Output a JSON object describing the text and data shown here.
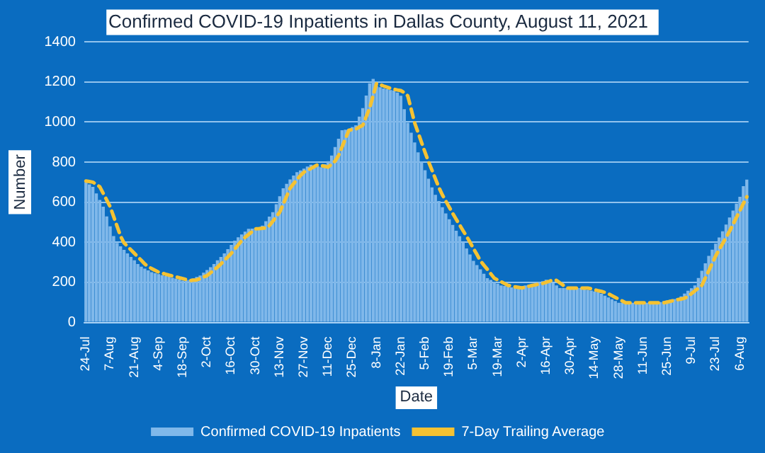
{
  "chart_data": {
    "type": "bar",
    "title": "Confirmed COVID-19 Inpatients in Dallas County, August 11, 2021",
    "xlabel": "Date",
    "ylabel": "Number",
    "categories": [
      "24-Jul",
      null,
      null,
      null,
      null,
      null,
      null,
      "7-Aug",
      null,
      null,
      null,
      null,
      null,
      null,
      "21-Aug",
      null,
      null,
      null,
      null,
      null,
      null,
      "4-Sep",
      null,
      null,
      null,
      null,
      null,
      null,
      "18-Sep",
      null,
      null,
      null,
      null,
      null,
      null,
      "2-Oct",
      null,
      null,
      null,
      null,
      null,
      null,
      "16-Oct",
      null,
      null,
      null,
      null,
      null,
      null,
      "30-Oct",
      null,
      null,
      null,
      null,
      null,
      null,
      "13-Nov",
      null,
      null,
      null,
      null,
      null,
      null,
      "27-Nov",
      null,
      null,
      null,
      null,
      null,
      null,
      "11-Dec",
      null,
      null,
      null,
      null,
      null,
      null,
      "25-Dec",
      null,
      null,
      null,
      null,
      null,
      null,
      "8-Jan",
      null,
      null,
      null,
      null,
      null,
      null,
      "22-Jan",
      null,
      null,
      null,
      null,
      null,
      null,
      "5-Feb",
      null,
      null,
      null,
      null,
      null,
      null,
      "19-Feb",
      null,
      null,
      null,
      null,
      null,
      null,
      "5-Mar",
      null,
      null,
      null,
      null,
      null,
      null,
      "19-Mar",
      null,
      null,
      null,
      null,
      null,
      null,
      "2-Apr",
      null,
      null,
      null,
      null,
      null,
      null,
      "16-Apr",
      null,
      null,
      null,
      null,
      null,
      null,
      "30-Apr",
      null,
      null,
      null,
      null,
      null,
      null,
      "14-May",
      null,
      null,
      null,
      null,
      null,
      null,
      "28-May",
      null,
      null,
      null,
      null,
      null,
      null,
      "11-Jun",
      null,
      null,
      null,
      null,
      null,
      null,
      "25-Jun",
      null,
      null,
      null,
      null,
      null,
      null,
      "9-Jul",
      null,
      null,
      null,
      null,
      null,
      null,
      "23-Jul",
      null,
      null,
      null,
      null,
      null,
      null,
      "6-Aug",
      null,
      null
    ],
    "series": [
      {
        "name": "Confirmed COVID-19 Inpatients",
        "type": "bar",
        "color": "#80b8ea",
        "values": [
          700,
          689,
          677,
          644,
          611,
          578,
          529,
          480,
          431,
          397,
          380,
          362,
          345,
          327,
          310,
          292,
          278,
          269,
          260,
          251,
          246,
          241,
          236,
          232,
          228,
          223,
          219,
          214,
          209,
          211,
          212,
          219,
          227,
          234,
          248,
          262,
          276,
          292,
          310,
          327,
          345,
          366,
          387,
          408,
          425,
          439,
          453,
          467,
          468,
          470,
          471,
          483,
          505,
          528,
          550,
          590,
          630,
          670,
          692,
          714,
          733,
          750,
          759,
          768,
          778,
          787,
          783,
          779,
          775,
          790,
          805,
          833,
          875,
          917,
          959,
          962,
          965,
          975,
          984,
          1027,
          1070,
          1132,
          1193,
          1215,
          1180,
          1174,
          1168,
          1164,
          1160,
          1157,
          1147,
          1131,
          1064,
          996,
          947,
          898,
          849,
          803,
          760,
          717,
          674,
          637,
          606,
          575,
          544,
          515,
          487,
          458,
          430,
          400,
          369,
          339,
          308,
          286,
          265,
          243,
          221,
          212,
          203,
          194,
          185,
          182,
          178,
          175,
          172,
          176,
          181,
          185,
          188,
          192,
          195,
          200,
          206,
          213,
          210,
          197,
          185,
          172,
          172,
          172,
          172,
          172,
          172,
          172,
          168,
          163,
          159,
          155,
          150,
          143,
          134,
          125,
          116,
          107,
          98,
          98,
          98,
          98,
          98,
          98,
          98,
          98,
          98,
          98,
          98,
          98,
          102,
          106,
          110,
          114,
          117,
          121,
          130,
          144,
          158,
          171,
          185,
          222,
          258,
          295,
          332,
          363,
          393,
          424,
          455,
          489,
          524,
          558,
          593,
          627,
          680,
          713
        ]
      },
      {
        "name": "7-Day Trailing Average",
        "type": "line",
        "color": "#f5c232",
        "line_style": "dashed",
        "marker": "none",
        "values": [
          706,
          703,
          700,
          689,
          677,
          644,
          611,
          578,
          529,
          480,
          431,
          397,
          380,
          362,
          345,
          327,
          310,
          292,
          278,
          269,
          260,
          251,
          246,
          241,
          236,
          232,
          228,
          223,
          219,
          214,
          209,
          211,
          212,
          219,
          227,
          234,
          248,
          262,
          276,
          292,
          310,
          327,
          345,
          366,
          387,
          408,
          425,
          439,
          453,
          467,
          468,
          470,
          471,
          483,
          505,
          528,
          550,
          590,
          630,
          670,
          692,
          714,
          733,
          750,
          759,
          768,
          778,
          787,
          783,
          779,
          775,
          790,
          805,
          833,
          875,
          917,
          959,
          962,
          965,
          975,
          984,
          1027,
          1070,
          1132,
          1193,
          1187,
          1180,
          1174,
          1168,
          1164,
          1160,
          1157,
          1147,
          1131,
          1064,
          996,
          947,
          898,
          849,
          803,
          760,
          717,
          674,
          637,
          606,
          575,
          544,
          515,
          487,
          458,
          430,
          400,
          369,
          339,
          308,
          286,
          265,
          243,
          221,
          212,
          203,
          194,
          185,
          182,
          178,
          175,
          172,
          176,
          181,
          185,
          188,
          192,
          195,
          200,
          206,
          213,
          210,
          197,
          185,
          172,
          172,
          172,
          172,
          172,
          172,
          172,
          168,
          163,
          159,
          155,
          150,
          143,
          134,
          125,
          116,
          107,
          98,
          98,
          98,
          98,
          98,
          98,
          98,
          98,
          98,
          98,
          98,
          98,
          102,
          106,
          110,
          114,
          117,
          121,
          130,
          144,
          158,
          171,
          185,
          222,
          258,
          295,
          332,
          363,
          393,
          424,
          455,
          489,
          524,
          558,
          593,
          627
        ]
      }
    ],
    "ylim": [
      0,
      1400
    ],
    "yticks": [
      0,
      200,
      400,
      600,
      800,
      1000,
      1200,
      1400
    ],
    "grid": "y",
    "legend": "bottom"
  }
}
